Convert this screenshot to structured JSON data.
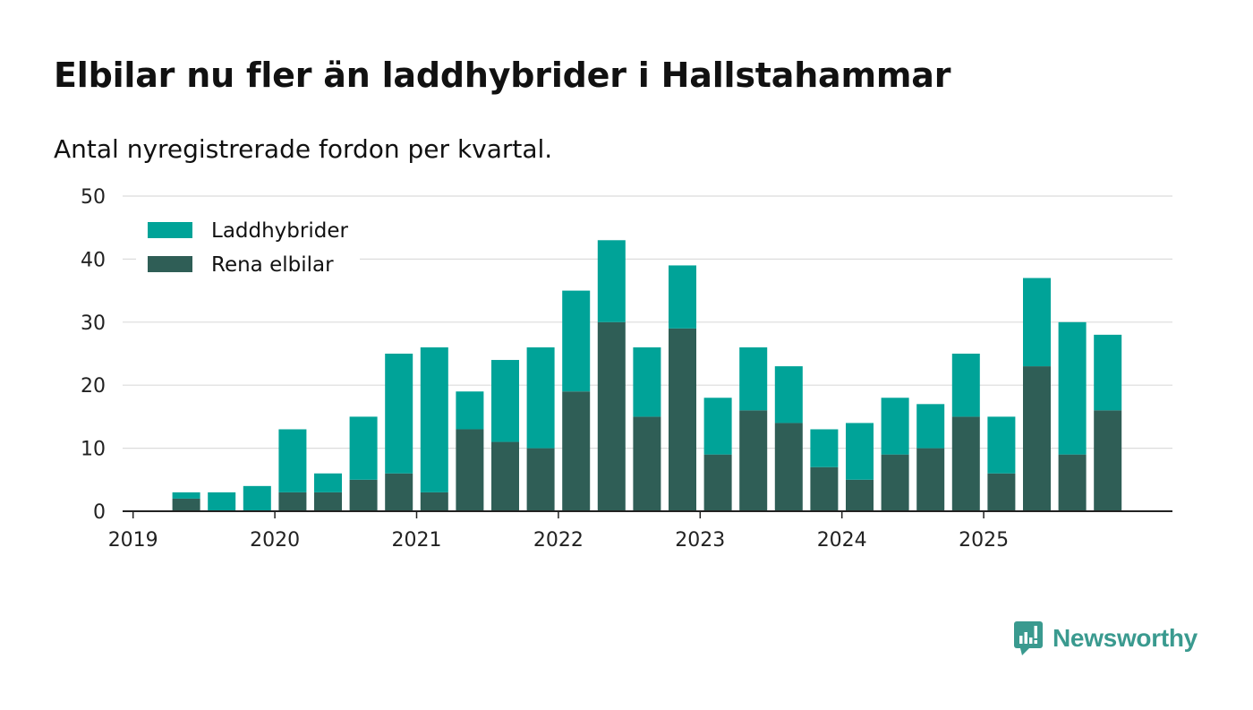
{
  "header": {
    "title": "Elbilar nu fler än laddhybrider i Hallstahammar",
    "subtitle": "Antal nyregistrerade fordon per kvartal."
  },
  "brand": {
    "name": "Newsworthy",
    "color": "#3a9a8f"
  },
  "chart_data": {
    "type": "bar",
    "stacked": true,
    "title": "Elbilar nu fler än laddhybrider i Hallstahammar",
    "subtitle": "Antal nyregistrerade fordon per kvartal.",
    "xlabel": "",
    "ylabel": "",
    "ylim": [
      0,
      50
    ],
    "yticks": [
      0,
      10,
      20,
      30,
      40,
      50
    ],
    "grid": true,
    "legend_position": "top-left",
    "x_tick_labels": [
      "2019",
      "2020",
      "2021",
      "2022",
      "2023",
      "2024",
      "2025"
    ],
    "categories": [
      "2019 Q1",
      "2019 Q2",
      "2019 Q3",
      "2019 Q4",
      "2020 Q1",
      "2020 Q2",
      "2020 Q3",
      "2020 Q4",
      "2021 Q1",
      "2021 Q2",
      "2021 Q3",
      "2021 Q4",
      "2022 Q1",
      "2022 Q2",
      "2022 Q3",
      "2022 Q4",
      "2023 Q1",
      "2023 Q2",
      "2023 Q3",
      "2023 Q4",
      "2024 Q1",
      "2024 Q2",
      "2024 Q3",
      "2024 Q4",
      "2025 Q1",
      "2025 Q2",
      "2025 Q3",
      "2025 Q4"
    ],
    "series": [
      {
        "name": "Rena elbilar",
        "color": "#2f5e56",
        "values": [
          0,
          2,
          0,
          0,
          3,
          3,
          5,
          6,
          3,
          13,
          11,
          10,
          19,
          30,
          15,
          29,
          9,
          16,
          14,
          7,
          5,
          9,
          10,
          15,
          6,
          23,
          9,
          16
        ]
      },
      {
        "name": "Laddhybrider",
        "color": "#00a398",
        "values": [
          0,
          1,
          3,
          4,
          10,
          3,
          10,
          19,
          23,
          6,
          13,
          16,
          16,
          13,
          11,
          10,
          9,
          10,
          9,
          6,
          9,
          9,
          7,
          10,
          9,
          14,
          21,
          12
        ]
      }
    ],
    "legend_order": [
      "Laddhybrider",
      "Rena elbilar"
    ]
  }
}
